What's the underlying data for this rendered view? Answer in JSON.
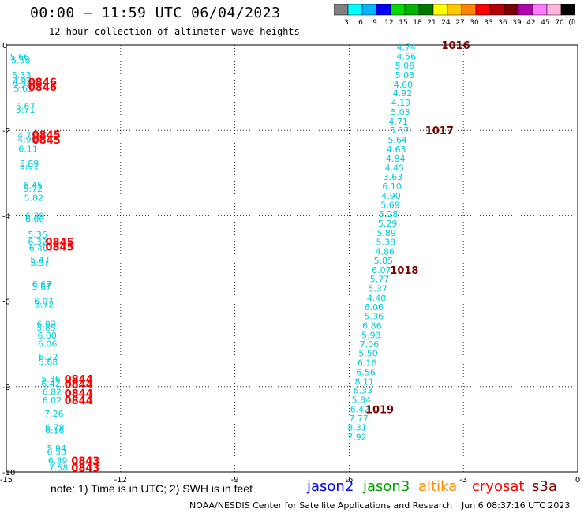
{
  "header": {
    "title": "00:00 — 11:59 UTC 06/04/2023",
    "subtitle": "12 hour collection of altimeter wave heights"
  },
  "colorbar": {
    "colors": [
      "#808080",
      "#00ffff",
      "#00b4ff",
      "#0000ff",
      "#00dc00",
      "#00b400",
      "#007800",
      "#ffff00",
      "#ffc800",
      "#ff8200",
      "#ff0000",
      "#b40000",
      "#780000",
      "#b400b4",
      "#ff78ff",
      "#ffb4dc",
      "#000000"
    ],
    "labels": [
      "3",
      "6",
      "9",
      "12",
      "15",
      "18",
      "21",
      "24",
      "27",
      "30",
      "33",
      "36",
      "39",
      "42",
      "45",
      "70",
      "(ft)"
    ]
  },
  "chart_data": {
    "type": "scatter",
    "xlim": [
      -15,
      0
    ],
    "ylim": [
      -10,
      0
    ],
    "x_ticks": [
      "-15",
      "-12",
      "-9",
      "-6",
      "-3",
      "0"
    ],
    "y_ticks": [
      "0",
      "-2",
      "-4",
      "-6",
      "-8",
      "-10"
    ],
    "grid": true,
    "track_right": [
      {
        "x": -4.5,
        "y": -0.05,
        "text": "4.74"
      },
      {
        "x": -4.5,
        "y": -0.27,
        "text": "4.56"
      },
      {
        "x": -4.54,
        "y": -0.48,
        "text": "5.06"
      },
      {
        "x": -4.54,
        "y": -0.7,
        "text": "5.03"
      },
      {
        "x": -4.58,
        "y": -0.92,
        "text": "4.60"
      },
      {
        "x": -4.6,
        "y": -1.13,
        "text": "4.92"
      },
      {
        "x": -4.64,
        "y": -1.35,
        "text": "4.19"
      },
      {
        "x": -4.65,
        "y": -1.57,
        "text": "5.03"
      },
      {
        "x": -4.71,
        "y": -1.79,
        "text": "4.71"
      },
      {
        "x": -4.68,
        "y": -2.0,
        "text": "5.37"
      },
      {
        "x": -4.73,
        "y": -2.22,
        "text": "5.64"
      },
      {
        "x": -4.76,
        "y": -2.44,
        "text": "4.63"
      },
      {
        "x": -4.78,
        "y": -2.66,
        "text": "4.84"
      },
      {
        "x": -4.81,
        "y": -2.87,
        "text": "4.45"
      },
      {
        "x": -4.85,
        "y": -3.09,
        "text": "3.63"
      },
      {
        "x": -4.88,
        "y": -3.31,
        "text": "6.10"
      },
      {
        "x": -4.9,
        "y": -3.53,
        "text": "4.90"
      },
      {
        "x": -4.92,
        "y": -3.74,
        "text": "5.69"
      },
      {
        "x": -4.97,
        "y": -3.96,
        "text": "5.28"
      },
      {
        "x": -4.99,
        "y": -4.18,
        "text": "5.29"
      },
      {
        "x": -5.02,
        "y": -4.4,
        "text": "5.89"
      },
      {
        "x": -5.04,
        "y": -4.61,
        "text": "5.38"
      },
      {
        "x": -5.06,
        "y": -4.83,
        "text": "4.86"
      },
      {
        "x": -5.1,
        "y": -5.05,
        "text": "5.85"
      },
      {
        "x": -5.15,
        "y": -5.27,
        "text": "6.07"
      },
      {
        "x": -5.2,
        "y": -5.48,
        "text": "5.77"
      },
      {
        "x": -5.25,
        "y": -5.7,
        "text": "5.37"
      },
      {
        "x": -5.28,
        "y": -5.92,
        "text": "4.40"
      },
      {
        "x": -5.35,
        "y": -6.14,
        "text": "6.06"
      },
      {
        "x": -5.35,
        "y": -6.35,
        "text": "5.36"
      },
      {
        "x": -5.4,
        "y": -6.57,
        "text": "6.86"
      },
      {
        "x": -5.42,
        "y": -6.79,
        "text": "5.93"
      },
      {
        "x": -5.47,
        "y": -7.01,
        "text": "7.06"
      },
      {
        "x": -5.5,
        "y": -7.22,
        "text": "5.50"
      },
      {
        "x": -5.53,
        "y": -7.44,
        "text": "6.16"
      },
      {
        "x": -5.56,
        "y": -7.66,
        "text": "6.56"
      },
      {
        "x": -5.6,
        "y": -7.88,
        "text": "8.11"
      },
      {
        "x": -5.64,
        "y": -8.09,
        "text": "6.33"
      },
      {
        "x": -5.68,
        "y": -8.31,
        "text": "5.84"
      },
      {
        "x": -5.72,
        "y": -8.53,
        "text": "6.42"
      },
      {
        "x": -5.75,
        "y": -8.74,
        "text": "7.77"
      },
      {
        "x": -5.79,
        "y": -8.96,
        "text": "8.31"
      },
      {
        "x": -5.79,
        "y": -9.18,
        "text": "7.92"
      }
    ],
    "track_left": [
      {
        "x": -14.65,
        "y": -0.28,
        "text": "5.66"
      },
      {
        "x": -14.62,
        "y": -0.36,
        "text": "5.58"
      },
      {
        "x": -14.6,
        "y": -0.7,
        "text": "5.33"
      },
      {
        "x": -14.58,
        "y": -0.84,
        "text": "4.95"
      },
      {
        "x": -14.58,
        "y": -0.93,
        "text": "5.28"
      },
      {
        "x": -14.55,
        "y": -1.02,
        "text": "5.63"
      },
      {
        "x": -14.5,
        "y": -1.43,
        "text": "5.67"
      },
      {
        "x": -14.5,
        "y": -1.52,
        "text": "5.71"
      },
      {
        "x": -14.45,
        "y": -2.12,
        "text": "4.75"
      },
      {
        "x": -14.45,
        "y": -2.21,
        "text": "4.99"
      },
      {
        "x": -14.43,
        "y": -2.43,
        "text": "6.11"
      },
      {
        "x": -14.4,
        "y": -2.77,
        "text": "5.89"
      },
      {
        "x": -14.4,
        "y": -2.84,
        "text": "5.91"
      },
      {
        "x": -14.3,
        "y": -3.28,
        "text": "6.45"
      },
      {
        "x": -14.3,
        "y": -3.36,
        "text": "5.72"
      },
      {
        "x": -14.28,
        "y": -3.58,
        "text": "5.82"
      },
      {
        "x": -14.25,
        "y": -4.0,
        "text": "6.39"
      },
      {
        "x": -14.25,
        "y": -4.08,
        "text": "6.00"
      },
      {
        "x": -14.18,
        "y": -4.44,
        "text": "5.36"
      },
      {
        "x": -14.18,
        "y": -4.6,
        "text": "6.32"
      },
      {
        "x": -14.15,
        "y": -4.75,
        "text": "6.40"
      },
      {
        "x": -14.12,
        "y": -5.03,
        "text": "5.47"
      },
      {
        "x": -14.12,
        "y": -5.1,
        "text": "5.57"
      },
      {
        "x": -14.07,
        "y": -5.6,
        "text": "6.67"
      },
      {
        "x": -14.07,
        "y": -5.66,
        "text": "5.67"
      },
      {
        "x": -14.02,
        "y": -6.0,
        "text": "6.07"
      },
      {
        "x": -14.0,
        "y": -6.07,
        "text": "5.72"
      },
      {
        "x": -13.95,
        "y": -6.53,
        "text": "6.03"
      },
      {
        "x": -13.95,
        "y": -6.62,
        "text": "5.85"
      },
      {
        "x": -13.93,
        "y": -6.8,
        "text": "6.00"
      },
      {
        "x": -13.92,
        "y": -7.0,
        "text": "6.06"
      },
      {
        "x": -13.9,
        "y": -7.3,
        "text": "6.22"
      },
      {
        "x": -13.9,
        "y": -7.42,
        "text": "5.68"
      },
      {
        "x": -13.83,
        "y": -7.82,
        "text": "5.36"
      },
      {
        "x": -13.83,
        "y": -7.93,
        "text": "6.42"
      },
      {
        "x": -13.8,
        "y": -8.12,
        "text": "6.82"
      },
      {
        "x": -13.8,
        "y": -8.32,
        "text": "6.02"
      },
      {
        "x": -13.75,
        "y": -8.63,
        "text": "7.26"
      },
      {
        "x": -13.73,
        "y": -8.96,
        "text": "6.78"
      },
      {
        "x": -13.73,
        "y": -9.03,
        "text": "6.16"
      },
      {
        "x": -13.68,
        "y": -9.45,
        "text": "5.94"
      },
      {
        "x": -13.68,
        "y": -9.53,
        "text": "6.50"
      },
      {
        "x": -13.65,
        "y": -9.73,
        "text": "6.39"
      },
      {
        "x": -13.63,
        "y": -9.9,
        "text": "7.58"
      }
    ],
    "time_labels": [
      {
        "x": -3.2,
        "y": 0.0,
        "text": "1016",
        "color": "#7a0000"
      },
      {
        "x": -3.63,
        "y": -2.0,
        "text": "1017",
        "color": "#7a0000"
      },
      {
        "x": -4.55,
        "y": -5.27,
        "text": "1018",
        "color": "#7a0000"
      },
      {
        "x": -5.2,
        "y": -8.53,
        "text": "1019",
        "color": "#7a0000"
      },
      {
        "x": -14.05,
        "y": -0.86,
        "text": "0846",
        "color": "#ff0000"
      },
      {
        "x": -14.05,
        "y": -0.98,
        "text": "0846",
        "color": "#ff0000"
      },
      {
        "x": -13.95,
        "y": -2.1,
        "text": "0845",
        "color": "#ff0000"
      },
      {
        "x": -13.95,
        "y": -2.22,
        "text": "0845",
        "color": "#ff0000"
      },
      {
        "x": -13.6,
        "y": -4.6,
        "text": "0845",
        "color": "#ff0000"
      },
      {
        "x": -13.6,
        "y": -4.72,
        "text": "0845",
        "color": "#ff0000"
      },
      {
        "x": -13.1,
        "y": -7.82,
        "text": "0844",
        "color": "#ff0000"
      },
      {
        "x": -13.1,
        "y": -7.94,
        "text": "0844",
        "color": "#ff0000"
      },
      {
        "x": -13.1,
        "y": -8.15,
        "text": "0844",
        "color": "#ff0000"
      },
      {
        "x": -13.1,
        "y": -8.32,
        "text": "0844",
        "color": "#ff0000"
      },
      {
        "x": -12.92,
        "y": -9.73,
        "text": "0843",
        "color": "#ff0000"
      },
      {
        "x": -12.92,
        "y": -9.9,
        "text": "0843",
        "color": "#ff0000"
      }
    ],
    "point_color": "#00ccdd"
  },
  "footer": {
    "note": "note:  1) Time is in UTC;  2) SWH is in feet",
    "legend": [
      {
        "name": "jason2",
        "color": "#0000ff"
      },
      {
        "name": "jason3",
        "color": "#00a000"
      },
      {
        "name": "altika",
        "color": "#ff8c00"
      },
      {
        "name": "cryosat",
        "color": "#ff0000"
      },
      {
        "name": "s3a",
        "color": "#800000"
      }
    ],
    "credit": "NOAA/NESDIS Center for Satellite Applications and Research",
    "timestamp": "Jun  6 08:37:16 UTC 2023"
  }
}
